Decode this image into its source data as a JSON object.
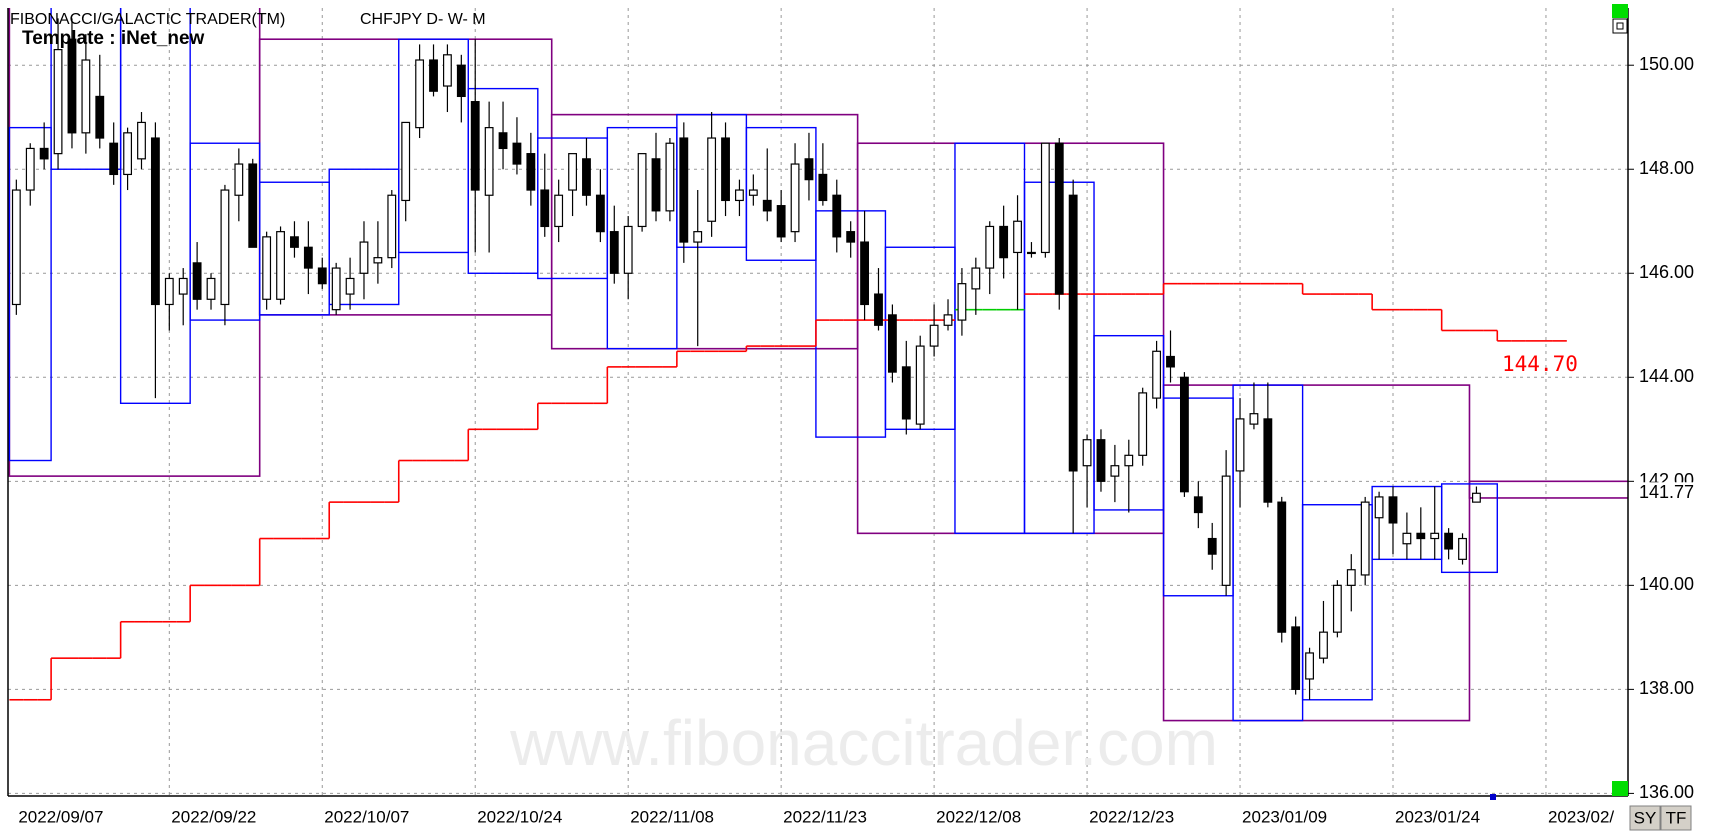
{
  "header": {
    "app": "FIBONACCI/GALACTIC TRADER(TM)",
    "symbol": "CHFJPY D- W- M",
    "template": "Template : iNet_new"
  },
  "watermark": "www.fibonaccitrader.com",
  "buttons": [
    "SY",
    "TF"
  ],
  "chart_data": {
    "type": "candlestick",
    "categories": [
      "2022/09/07",
      null,
      null,
      null,
      null,
      null,
      null,
      null,
      null,
      null,
      null,
      "2022/09/22",
      null,
      null,
      null,
      null,
      null,
      null,
      null,
      null,
      null,
      null,
      "2022/10/07",
      null,
      null,
      null,
      null,
      null,
      null,
      null,
      null,
      null,
      null,
      "2022/10/24",
      null,
      null,
      null,
      null,
      null,
      null,
      null,
      null,
      null,
      null,
      "2022/11/08",
      null,
      null,
      null,
      null,
      null,
      null,
      null,
      null,
      null,
      null,
      "2022/11/23",
      null,
      null,
      null,
      null,
      null,
      null,
      null,
      null,
      null,
      null,
      "2022/12/08",
      null,
      null,
      null,
      null,
      null,
      null,
      null,
      null,
      null,
      null,
      "2022/12/23",
      null,
      null,
      null,
      null,
      null,
      null,
      null,
      null,
      null,
      null,
      "2023/01/09",
      null,
      null,
      null,
      null,
      null,
      null,
      null,
      null,
      null,
      null,
      "2023/01/24",
      null,
      null,
      null,
      null,
      null,
      null,
      null,
      null,
      null,
      null,
      "2023/02/",
      null
    ],
    "ohlc": [
      [
        145.4,
        147.8,
        145.2,
        147.6
      ],
      [
        147.6,
        148.5,
        147.3,
        148.4
      ],
      [
        148.4,
        148.9,
        148.0,
        148.2
      ],
      [
        148.3,
        150.9,
        148.0,
        150.3
      ],
      [
        150.5,
        150.9,
        148.4,
        148.7
      ],
      [
        148.7,
        150.6,
        148.3,
        150.1
      ],
      [
        149.4,
        150.2,
        148.4,
        148.6
      ],
      [
        148.5,
        148.9,
        147.7,
        147.9
      ],
      [
        147.9,
        148.8,
        147.6,
        148.7
      ],
      [
        148.2,
        149.1,
        148.0,
        148.9
      ],
      [
        148.6,
        148.9,
        143.6,
        145.4
      ],
      [
        145.4,
        146.0,
        144.9,
        145.9
      ],
      [
        145.6,
        146.1,
        145.0,
        145.9
      ],
      [
        146.2,
        146.6,
        145.3,
        145.5
      ],
      [
        145.5,
        146.0,
        145.3,
        145.9
      ],
      [
        145.4,
        147.7,
        145.0,
        147.6
      ],
      [
        147.5,
        148.4,
        147.0,
        148.1
      ],
      [
        148.1,
        148.2,
        146.5,
        146.5
      ],
      [
        145.5,
        146.8,
        145.3,
        146.7
      ],
      [
        145.5,
        146.9,
        145.4,
        146.8
      ],
      [
        146.7,
        147.0,
        146.3,
        146.5
      ],
      [
        146.5,
        147.0,
        145.6,
        146.1
      ],
      [
        146.1,
        146.3,
        145.7,
        145.8
      ],
      [
        145.3,
        146.2,
        145.2,
        146.1
      ],
      [
        145.6,
        146.3,
        145.3,
        145.9
      ],
      [
        146.0,
        147.0,
        145.5,
        146.6
      ],
      [
        146.2,
        147.0,
        145.8,
        146.3
      ],
      [
        146.3,
        147.6,
        146.1,
        147.5
      ],
      [
        147.4,
        148.9,
        147.0,
        148.9
      ],
      [
        148.8,
        150.4,
        148.6,
        150.1
      ],
      [
        150.1,
        150.4,
        149.4,
        149.5
      ],
      [
        149.6,
        150.4,
        149.1,
        150.2
      ],
      [
        150.0,
        150.2,
        148.9,
        149.4
      ],
      [
        149.3,
        150.5,
        146.4,
        147.6
      ],
      [
        147.5,
        149.3,
        146.4,
        148.8
      ],
      [
        148.7,
        149.3,
        148.0,
        148.4
      ],
      [
        148.5,
        149.0,
        147.9,
        148.1
      ],
      [
        148.3,
        148.7,
        147.3,
        147.6
      ],
      [
        147.6,
        148.3,
        146.7,
        146.9
      ],
      [
        146.9,
        147.8,
        146.6,
        147.5
      ],
      [
        147.6,
        148.3,
        147.1,
        148.3
      ],
      [
        148.2,
        148.6,
        147.3,
        147.5
      ],
      [
        147.5,
        148.0,
        146.6,
        146.8
      ],
      [
        146.8,
        147.3,
        145.8,
        146.0
      ],
      [
        146.0,
        147.1,
        145.5,
        146.9
      ],
      [
        146.9,
        148.3,
        146.8,
        148.3
      ],
      [
        148.2,
        148.7,
        147.0,
        147.2
      ],
      [
        147.2,
        148.6,
        147.0,
        148.5
      ],
      [
        148.6,
        148.9,
        146.2,
        146.6
      ],
      [
        146.6,
        147.6,
        144.6,
        146.8
      ],
      [
        147.0,
        149.1,
        146.7,
        148.6
      ],
      [
        148.6,
        148.9,
        147.1,
        147.4
      ],
      [
        147.4,
        147.8,
        147.1,
        147.6
      ],
      [
        147.5,
        147.9,
        147.3,
        147.6
      ],
      [
        147.4,
        148.4,
        147.0,
        147.2
      ],
      [
        147.3,
        147.6,
        146.6,
        146.7
      ],
      [
        146.8,
        148.5,
        146.6,
        148.1
      ],
      [
        148.2,
        148.7,
        147.4,
        147.8
      ],
      [
        147.9,
        148.5,
        147.3,
        147.4
      ],
      [
        147.5,
        147.8,
        146.4,
        146.7
      ],
      [
        146.8,
        147.0,
        146.3,
        146.6
      ],
      [
        146.6,
        147.2,
        145.1,
        145.4
      ],
      [
        145.6,
        146.1,
        144.9,
        145.0
      ],
      [
        145.2,
        145.4,
        143.9,
        144.1
      ],
      [
        144.2,
        144.7,
        142.9,
        143.2
      ],
      [
        143.1,
        144.8,
        143.0,
        144.6
      ],
      [
        144.6,
        145.4,
        144.4,
        145.0
      ],
      [
        145.0,
        145.5,
        144.9,
        145.2
      ],
      [
        145.1,
        146.1,
        144.8,
        145.8
      ],
      [
        145.7,
        146.3,
        145.2,
        146.1
      ],
      [
        146.1,
        147.0,
        145.6,
        146.9
      ],
      [
        146.9,
        147.3,
        145.9,
        146.3
      ],
      [
        146.4,
        147.5,
        145.3,
        147.0
      ],
      [
        146.4,
        146.6,
        146.3,
        146.4
      ],
      [
        146.4,
        148.5,
        146.3,
        148.5
      ],
      [
        148.5,
        148.6,
        145.3,
        145.6
      ],
      [
        147.5,
        147.8,
        141.0,
        142.2
      ],
      [
        142.3,
        142.9,
        141.5,
        142.8
      ],
      [
        142.8,
        143.0,
        141.8,
        142.0
      ],
      [
        142.1,
        142.7,
        141.6,
        142.3
      ],
      [
        142.3,
        142.8,
        141.4,
        142.5
      ],
      [
        142.5,
        143.8,
        142.3,
        143.7
      ],
      [
        143.6,
        144.7,
        143.4,
        144.5
      ],
      [
        144.4,
        144.9,
        143.9,
        144.2
      ],
      [
        144.0,
        144.1,
        141.7,
        141.8
      ],
      [
        141.7,
        142.0,
        141.1,
        141.4
      ],
      [
        140.9,
        141.2,
        140.3,
        140.6
      ],
      [
        140.0,
        142.6,
        139.8,
        142.1
      ],
      [
        142.2,
        143.6,
        141.5,
        143.2
      ],
      [
        143.1,
        143.9,
        143.0,
        143.3
      ],
      [
        143.2,
        143.9,
        141.5,
        141.6
      ],
      [
        141.6,
        141.7,
        138.9,
        139.1
      ],
      [
        139.2,
        139.4,
        137.9,
        138.0
      ],
      [
        138.2,
        138.8,
        137.8,
        138.7
      ],
      [
        138.6,
        139.7,
        138.5,
        139.1
      ],
      [
        139.1,
        140.1,
        139.0,
        140.0
      ],
      [
        140.0,
        140.6,
        139.5,
        140.3
      ],
      [
        140.2,
        141.7,
        140.0,
        141.6
      ],
      [
        141.3,
        141.8,
        140.5,
        141.7
      ],
      [
        141.7,
        141.9,
        140.6,
        141.2
      ],
      [
        140.8,
        141.4,
        140.5,
        141.0
      ],
      [
        141.0,
        141.5,
        140.5,
        140.9
      ],
      [
        140.9,
        141.9,
        140.5,
        141.0
      ],
      [
        141.0,
        141.1,
        140.5,
        140.7
      ],
      [
        140.5,
        141.0,
        140.4,
        140.9
      ],
      [
        141.6,
        141.9,
        141.6,
        141.77
      ],
      null,
      null,
      null,
      null,
      null,
      null
    ],
    "red_line": [
      137.8,
      137.8,
      137.8,
      138.6,
      138.6,
      138.6,
      138.6,
      138.6,
      139.3,
      139.3,
      139.3,
      139.3,
      139.3,
      140.0,
      140.0,
      140.0,
      140.0,
      140.0,
      140.9,
      140.9,
      140.9,
      140.9,
      140.9,
      141.6,
      141.6,
      141.6,
      141.6,
      141.6,
      142.4,
      142.4,
      142.4,
      142.4,
      142.4,
      143.0,
      143.0,
      143.0,
      143.0,
      143.0,
      143.5,
      143.5,
      143.5,
      143.5,
      143.5,
      144.2,
      144.2,
      144.2,
      144.2,
      144.2,
      144.5,
      144.5,
      144.5,
      144.5,
      144.5,
      144.6,
      144.6,
      144.6,
      144.6,
      144.6,
      145.1,
      145.1,
      145.1,
      145.1,
      145.1,
      145.1,
      145.1,
      145.1,
      145.1,
      145.1,
      null,
      null,
      null,
      null,
      null,
      145.6,
      145.6,
      145.6,
      145.6,
      145.6,
      145.6,
      145.6,
      145.6,
      145.6,
      145.6,
      145.8,
      145.8,
      145.8,
      145.8,
      145.8,
      145.8,
      145.8,
      145.8,
      145.8,
      145.8,
      145.6,
      145.6,
      145.6,
      145.6,
      145.6,
      145.3,
      145.3,
      145.3,
      145.3,
      145.3,
      144.9,
      144.9,
      144.9,
      144.9,
      144.7,
      144.7,
      144.7,
      144.7,
      144.7
    ],
    "green_line": [
      null,
      null,
      null,
      null,
      null,
      null,
      null,
      null,
      null,
      null,
      null,
      null,
      null,
      null,
      null,
      null,
      null,
      null,
      null,
      null,
      null,
      null,
      null,
      null,
      null,
      null,
      null,
      null,
      null,
      null,
      null,
      null,
      null,
      null,
      null,
      null,
      null,
      null,
      null,
      null,
      null,
      null,
      null,
      null,
      null,
      null,
      null,
      null,
      null,
      null,
      null,
      null,
      null,
      null,
      null,
      null,
      null,
      null,
      null,
      null,
      null,
      null,
      null,
      null,
      null,
      null,
      null,
      null,
      145.3,
      145.3,
      145.3,
      145.3,
      145.3,
      null,
      null,
      null,
      null,
      null,
      null,
      null,
      null,
      null,
      null,
      null,
      null,
      null,
      null,
      null,
      null,
      null,
      null,
      null,
      null,
      null,
      null,
      null,
      null,
      null,
      null,
      null,
      null,
      null,
      null,
      null,
      null,
      null,
      null,
      null,
      null,
      null,
      null,
      null
    ],
    "monthly_boxes": [
      {
        "from": 0,
        "to": 17,
        "high": 151.3,
        "low": 142.1
      },
      {
        "from": 18,
        "to": 38,
        "high": 150.5,
        "low": 145.2
      },
      {
        "from": 39,
        "to": 60,
        "high": 149.05,
        "low": 144.55
      },
      {
        "from": 61,
        "to": 82,
        "high": 148.5,
        "low": 141.0
      },
      {
        "from": 83,
        "to": 104,
        "high": 143.85,
        "low": 137.4
      },
      {
        "from": 105,
        "to": 118,
        "high": 142.0,
        "low": 141.68
      }
    ],
    "weekly_boxes": [
      {
        "from": 0,
        "to": 2,
        "high": 148.8,
        "low": 142.4
      },
      {
        "from": 3,
        "to": 7,
        "high": 151.3,
        "low": 148.0
      },
      {
        "from": 8,
        "to": 12,
        "high": 151.3,
        "low": 143.5
      },
      {
        "from": 13,
        "to": 17,
        "high": 148.5,
        "low": 145.1
      },
      {
        "from": 18,
        "to": 22,
        "high": 147.75,
        "low": 145.2
      },
      {
        "from": 23,
        "to": 27,
        "high": 148.0,
        "low": 145.4
      },
      {
        "from": 28,
        "to": 32,
        "high": 150.5,
        "low": 146.4
      },
      {
        "from": 33,
        "to": 37,
        "high": 149.55,
        "low": 146.0
      },
      {
        "from": 38,
        "to": 42,
        "high": 148.6,
        "low": 145.9
      },
      {
        "from": 43,
        "to": 47,
        "high": 148.8,
        "low": 144.55
      },
      {
        "from": 48,
        "to": 52,
        "high": 149.05,
        "low": 146.5
      },
      {
        "from": 53,
        "to": 57,
        "high": 148.8,
        "low": 146.25
      },
      {
        "from": 58,
        "to": 62,
        "high": 147.2,
        "low": 142.85
      },
      {
        "from": 63,
        "to": 67,
        "high": 146.5,
        "low": 143.0
      },
      {
        "from": 68,
        "to": 72,
        "high": 148.5,
        "low": 141.0
      },
      {
        "from": 73,
        "to": 77,
        "high": 147.75,
        "low": 141.0
      },
      {
        "from": 78,
        "to": 82,
        "high": 144.8,
        "low": 141.45
      },
      {
        "from": 83,
        "to": 87,
        "high": 143.6,
        "low": 139.8
      },
      {
        "from": 88,
        "to": 92,
        "high": 143.85,
        "low": 137.4
      },
      {
        "from": 93,
        "to": 97,
        "high": 141.55,
        "low": 137.8
      },
      {
        "from": 98,
        "to": 102,
        "high": 141.9,
        "low": 140.5
      },
      {
        "from": 103,
        "to": 106,
        "high": 141.95,
        "low": 140.25
      }
    ],
    "monthly_color": "#800080",
    "weekly_color": "#0000ff",
    "red_color": "#ff0000",
    "green_color": "#00cc00",
    "price_label": {
      "value": 141.77,
      "label": "141.77"
    },
    "stop_label": {
      "value": 144.7,
      "label": "144.70"
    },
    "xlim": [
      -0.6,
      115.9
    ],
    "ylim": [
      135.95,
      151.1
    ],
    "yticks": [
      {
        "value": 136,
        "label": "136.00"
      },
      {
        "value": 138,
        "label": "138.00"
      },
      {
        "value": 140,
        "label": "140.00"
      },
      {
        "value": 142,
        "label": "142.00"
      },
      {
        "value": 144,
        "label": "144.00"
      },
      {
        "value": 146,
        "label": "146.00"
      },
      {
        "value": 148,
        "label": "148.00"
      },
      {
        "value": 150,
        "label": "150.00"
      }
    ],
    "grid": true
  }
}
